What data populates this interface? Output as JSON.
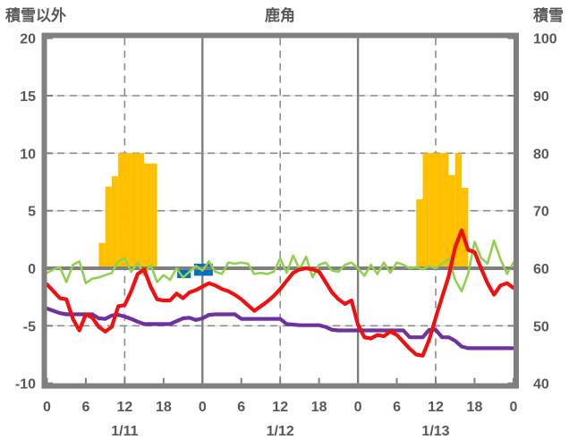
{
  "chart_data": {
    "type": "composite",
    "title": "鹿角",
    "left_axis": {
      "title": "積雪以外",
      "range": [
        -10,
        20
      ],
      "ticks": [
        20,
        15,
        10,
        5,
        0,
        -5,
        -10
      ],
      "dashed_gridlines": [
        15,
        10,
        5,
        -5
      ],
      "zero_line": 0
    },
    "right_axis": {
      "title": "積雪",
      "range": [
        40,
        100
      ],
      "ticks": [
        100,
        90,
        80,
        70,
        60,
        50,
        40
      ]
    },
    "x_axis": {
      "unit": "hour",
      "range": [
        0,
        72
      ],
      "tick_step": 6,
      "tick_labels": [
        "0",
        "6",
        "12",
        "18",
        "0",
        "6",
        "12",
        "18",
        "0",
        "6",
        "12",
        "18",
        "0"
      ],
      "dashed_gridline_hours": [
        12,
        36,
        60
      ],
      "solid_gridline_hours": [
        24,
        48
      ],
      "date_labels": [
        {
          "label": "1/11",
          "hour": 12
        },
        {
          "label": "1/12",
          "hour": 36
        },
        {
          "label": "1/13",
          "hour": 60
        }
      ]
    },
    "series": {
      "sunshine_bars": {
        "axis": "left",
        "color": "#FFC000",
        "bars": [
          {
            "h": 8,
            "v": 2.2
          },
          {
            "h": 9,
            "v": 7.1
          },
          {
            "h": 10,
            "v": 8.0
          },
          {
            "h": 11,
            "v": 10
          },
          {
            "h": 12,
            "v": 10
          },
          {
            "h": 13,
            "v": 10
          },
          {
            "h": 14,
            "v": 10
          },
          {
            "h": 15,
            "v": 9.1
          },
          {
            "h": 16,
            "v": 9.1
          },
          {
            "h": 57,
            "v": 6.0
          },
          {
            "h": 58,
            "v": 10
          },
          {
            "h": 59,
            "v": 10
          },
          {
            "h": 60,
            "v": 10
          },
          {
            "h": 61,
            "v": 10
          },
          {
            "h": 62,
            "v": 8.1
          },
          {
            "h": 63,
            "v": 10
          },
          {
            "h": 64,
            "v": 7.0
          }
        ]
      },
      "precipitation_bars": {
        "axis": "left",
        "color": "#0070C0",
        "bars": [
          {
            "from": 20.1,
            "to": 22.2,
            "top": 0.05,
            "bottom": -0.85
          },
          {
            "from": 22.7,
            "to": 25.6,
            "top": 0.4,
            "bottom": -0.65
          }
        ]
      },
      "green_line": {
        "axis": "left",
        "color": "#92D050",
        "width": 2.6,
        "values": [
          -0.4,
          -0.1,
          0.1,
          -1.2,
          0.3,
          0.6,
          -1.3,
          -0.9,
          -0.8,
          -0.6,
          -0.4,
          0.6,
          0.85,
          -0.3,
          0.5,
          -0.6,
          0.3,
          -1.2,
          -0.6,
          -1.0,
          0.0,
          -0.8,
          -0.3,
          0.2,
          -0.2,
          0.6,
          -0.3,
          -0.5,
          0.5,
          0.4,
          0.5,
          0.4,
          -0.5,
          -0.4,
          -0.5,
          -0.3,
          0.85,
          -0.4,
          1.1,
          -0.1,
          1.0,
          -0.8,
          0.3,
          0.5,
          -0.2,
          -0.3,
          0.3,
          0.5,
          0.0,
          -0.65,
          0.3,
          -0.5,
          0.5,
          -0.4,
          0.5,
          0.3,
          0.0,
          0.1,
          -0.1,
          0.2,
          0.0,
          0.4,
          0.85,
          -1.0,
          -2.0,
          -0.5,
          2.3,
          0.9,
          0.4,
          2.4,
          0.8,
          -0.5,
          0.5
        ]
      },
      "snow_depth_line": {
        "axis": "right",
        "color": "#7030A0",
        "width": 4.2,
        "values": [
          53.0,
          52.6,
          52.2,
          52.0,
          52.0,
          52.0,
          52.0,
          52.0,
          51.3,
          51.2,
          51.8,
          51.9,
          51.6,
          51.2,
          50.7,
          50.3,
          50.3,
          50.3,
          50.3,
          50.3,
          50.8,
          51.3,
          51.4,
          51.0,
          51.3,
          51.9,
          52.0,
          52.0,
          52.0,
          52.0,
          51.2,
          51.2,
          51.2,
          51.2,
          51.2,
          51.2,
          51.2,
          50.3,
          50.2,
          50.1,
          50.1,
          50.1,
          50.1,
          49.8,
          49.3,
          49.2,
          49.2,
          49.2,
          49.2,
          49.2,
          49.2,
          49.2,
          49.2,
          49.2,
          49.2,
          49.2,
          48.0,
          48.0,
          48.0,
          49.3,
          49.3,
          48.0,
          48.0,
          47.4,
          46.4,
          46.1,
          46.1,
          46.1,
          46.1,
          46.1,
          46.1,
          46.1,
          46.1
        ]
      },
      "temperature_line": {
        "axis": "left",
        "color": "#F01010",
        "width": 4.2,
        "values": [
          -1.4,
          -2.0,
          -2.6,
          -2.7,
          -4.4,
          -5.4,
          -4.0,
          -4.3,
          -5.1,
          -5.5,
          -5.1,
          -3.3,
          -3.2,
          -2.0,
          -0.5,
          -0.1,
          -1.6,
          -2.7,
          -2.8,
          -2.8,
          -2.2,
          -2.6,
          -2.1,
          -1.9,
          -1.6,
          -1.3,
          -1.5,
          -1.8,
          -2.0,
          -2.3,
          -2.7,
          -3.2,
          -3.7,
          -3.3,
          -2.9,
          -2.4,
          -1.8,
          -1.1,
          -0.4,
          -0.1,
          0.0,
          -0.1,
          -0.3,
          -1.2,
          -2.1,
          -2.7,
          -3.1,
          -2.8,
          -4.9,
          -6.0,
          -6.1,
          -5.8,
          -5.9,
          -5.5,
          -5.8,
          -6.4,
          -7.0,
          -7.5,
          -7.6,
          -6.2,
          -4.3,
          -2.5,
          -0.7,
          1.8,
          3.3,
          1.6,
          1.4,
          0.0,
          -1.3,
          -2.3,
          -1.5,
          -1.3,
          -1.7
        ]
      }
    },
    "colors": {
      "frame": "#808080",
      "day_line": "#808080",
      "zero_line": "#808080",
      "grid_dash": "#8C8C8C",
      "grid_light": "#D9D9D9",
      "text": "#595959",
      "background": "#FFFFFF"
    }
  }
}
